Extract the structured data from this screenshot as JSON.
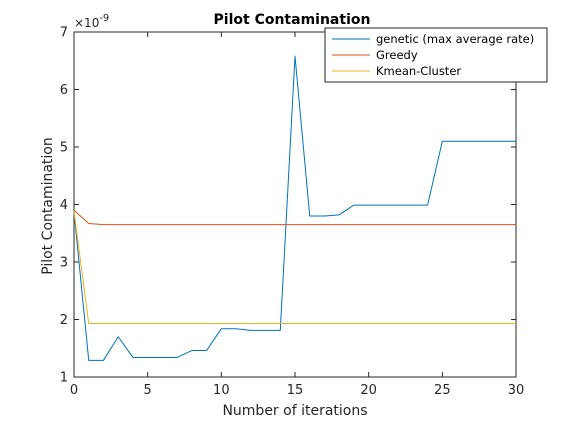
{
  "chart_data": {
    "type": "line",
    "title": "Pilot Contamination",
    "xlabel": "Number of iterations",
    "ylabel": "Pilot Contamination",
    "y_exponent": "×10^{-9}",
    "y_exponent_base": "×10",
    "y_exponent_power": "-9",
    "xlim": [
      0,
      30
    ],
    "ylim": [
      1,
      7
    ],
    "x_ticks": [
      "0",
      "5",
      "10",
      "15",
      "20",
      "25",
      "30"
    ],
    "y_ticks": [
      "1",
      "2",
      "3",
      "4",
      "5",
      "6",
      "7"
    ],
    "grid": false,
    "legend_position": "top-right",
    "x": [
      0,
      1,
      2,
      3,
      4,
      5,
      6,
      7,
      8,
      9,
      10,
      11,
      12,
      13,
      14,
      15,
      16,
      17,
      18,
      19,
      20,
      21,
      22,
      23,
      24,
      25,
      26,
      27,
      28,
      29,
      30
    ],
    "series": [
      {
        "name": "genetic (max average rate)",
        "color": "#0072BD",
        "values": [
          3.88,
          1.29,
          1.29,
          1.7,
          1.34,
          1.34,
          1.34,
          1.34,
          1.46,
          1.46,
          1.84,
          1.84,
          1.81,
          1.81,
          1.81,
          6.58,
          3.8,
          3.8,
          3.82,
          3.99,
          3.99,
          3.99,
          3.99,
          3.99,
          3.99,
          5.1,
          5.1,
          5.1,
          5.1,
          5.1,
          5.1
        ]
      },
      {
        "name": "Greedy",
        "color": "#D95319",
        "values": [
          3.9,
          3.67,
          3.65,
          3.65,
          3.65,
          3.65,
          3.65,
          3.65,
          3.65,
          3.65,
          3.65,
          3.65,
          3.65,
          3.65,
          3.65,
          3.65,
          3.65,
          3.65,
          3.65,
          3.65,
          3.65,
          3.65,
          3.65,
          3.65,
          3.65,
          3.65,
          3.65,
          3.65,
          3.65,
          3.65,
          3.65
        ]
      },
      {
        "name": "Kmean-Cluster",
        "color": "#EDB120",
        "values": [
          3.88,
          1.93,
          1.93,
          1.93,
          1.93,
          1.93,
          1.93,
          1.93,
          1.93,
          1.93,
          1.93,
          1.93,
          1.93,
          1.93,
          1.93,
          1.93,
          1.93,
          1.93,
          1.93,
          1.93,
          1.93,
          1.93,
          1.93,
          1.93,
          1.93,
          1.93,
          1.93,
          1.93,
          1.93,
          1.93,
          1.93
        ]
      }
    ]
  }
}
